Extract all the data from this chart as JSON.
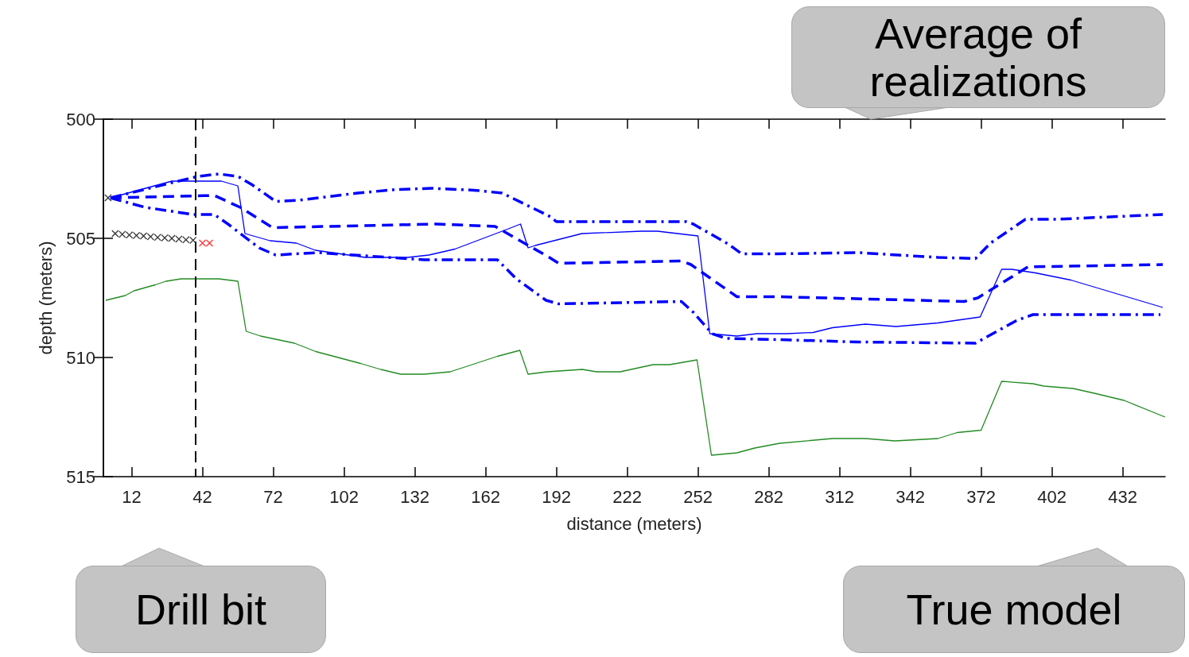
{
  "chart_data": {
    "type": "line",
    "xlabel": "distance (meters)",
    "ylabel": "depth (meters)",
    "annotations": [
      "Average of realizations",
      "Drill bit",
      "True model"
    ],
    "xlim": [
      0,
      450
    ],
    "ylim": [
      515,
      500
    ],
    "xticks": [
      12,
      42,
      72,
      102,
      132,
      162,
      192,
      222,
      252,
      282,
      312,
      342,
      372,
      402,
      432
    ],
    "yticks": [
      500,
      505,
      510,
      515
    ],
    "ref_lines": [
      {
        "axis": "x",
        "value": 39,
        "color": "#000000",
        "line_style": "dashed"
      }
    ],
    "series": [
      {
        "color": "#228b22",
        "line_style": "solid",
        "marker": "none",
        "x": [
          1,
          9.3,
          13,
          22,
          26.5,
          33,
          39,
          49,
          57,
          60.5,
          66.6,
          81,
          90,
          109,
          117.5,
          126,
          136,
          147,
          167,
          176.5,
          180,
          188,
          203,
          209,
          219,
          233,
          240,
          251.6,
          257.7,
          268.5,
          276,
          286.6,
          309,
          323,
          335.5,
          353.7,
          361.8,
          372,
          380.7,
          394,
          398.6,
          411,
          420,
          432.6,
          450
        ],
        "values": [
          507.6,
          507.4,
          507.2,
          506.95,
          506.8,
          506.7,
          506.7,
          506.7,
          506.8,
          508.9,
          509.1,
          509.4,
          509.75,
          510.25,
          510.5,
          510.7,
          510.7,
          510.6,
          509.95,
          509.7,
          510.7,
          510.6,
          510.5,
          510.6,
          510.6,
          510.3,
          510.3,
          510.1,
          514.1,
          514.0,
          513.8,
          513.6,
          513.4,
          513.4,
          513.5,
          513.4,
          513.15,
          513.05,
          511.0,
          511.1,
          511.2,
          511.3,
          511.5,
          511.8,
          512.5
        ]
      },
      {
        "color": "#0000ff",
        "line_style": "solid",
        "marker": "none",
        "x": [
          3,
          29,
          39,
          50,
          57,
          60,
          70.6,
          81.8,
          89.8,
          111,
          129,
          138,
          149,
          171.7,
          176.8,
          180,
          183,
          202.8,
          228,
          234.8,
          252,
          257,
          268.5,
          277,
          289.7,
          300.8,
          309,
          323,
          335.9,
          353.7,
          371.6,
          380.7,
          385,
          395,
          410,
          449
        ],
        "values": [
          503.3,
          502.6,
          502.6,
          502.6,
          502.8,
          504.8,
          505.1,
          505.2,
          505.5,
          505.8,
          505.8,
          505.7,
          505.45,
          504.6,
          504.4,
          505.4,
          505.3,
          504.8,
          504.7,
          504.7,
          504.9,
          509.0,
          509.1,
          509.0,
          509.0,
          508.95,
          508.75,
          508.6,
          508.7,
          508.55,
          508.3,
          506.3,
          506.3,
          506.45,
          506.75,
          507.9
        ]
      },
      {
        "color": "#0000ff",
        "line_style": "dashed",
        "marker": "none",
        "x": [
          3,
          47,
          58,
          71.7,
          141,
          166,
          189,
          193,
          245,
          249,
          268.5,
          286,
          364.8,
          370.6,
          391.8,
          449
        ],
        "values": [
          503.3,
          503.2,
          503.7,
          504.55,
          504.4,
          504.5,
          505.8,
          506.05,
          505.95,
          506.1,
          507.45,
          507.45,
          507.65,
          507.5,
          506.2,
          506.1
        ]
      },
      {
        "color": "#0000ff",
        "line_style": "dashdot",
        "marker": "none",
        "x": [
          3,
          40,
          49,
          57,
          63,
          73,
          83,
          107.7,
          124.5,
          139,
          157,
          169,
          189.6,
          192,
          247,
          250,
          265,
          270.5,
          286,
          320,
          353.7,
          369.6,
          376,
          390.8,
          404,
          449
        ],
        "values": [
          503.3,
          502.4,
          502.3,
          502.4,
          502.75,
          503.45,
          503.4,
          503.1,
          502.95,
          502.9,
          502.98,
          503.1,
          504.1,
          504.3,
          504.3,
          504.4,
          505.25,
          505.65,
          505.65,
          505.6,
          505.8,
          505.85,
          505.2,
          504.2,
          504.2,
          504.0
        ]
      },
      {
        "color": "#0000ff",
        "line_style": "dashdot",
        "marker": "none",
        "x": [
          3,
          17.7,
          38,
          47,
          52.8,
          66,
          73,
          91,
          136,
          167,
          175,
          187.6,
          193,
          245,
          250,
          258,
          263.8,
          286,
          320,
          369.6,
          376,
          387,
          394,
          448
        ],
        "values": [
          503.3,
          503.7,
          504.0,
          504.0,
          504.4,
          505.4,
          505.7,
          505.6,
          505.9,
          505.9,
          506.7,
          507.6,
          507.75,
          507.65,
          508.1,
          509.0,
          509.2,
          509.25,
          509.35,
          509.4,
          509.05,
          508.45,
          508.2,
          508.2
        ]
      },
      {
        "type": "scatter",
        "color": "#000000",
        "marker": "cross",
        "x": [
          2,
          5,
          8,
          11,
          14,
          17,
          20,
          23,
          26,
          29,
          32,
          35,
          38
        ],
        "values": [
          503.3,
          504.8,
          504.83,
          504.86,
          504.88,
          504.9,
          504.93,
          504.96,
          504.98,
          505.0,
          505.03,
          505.06,
          505.08
        ]
      },
      {
        "type": "scatter",
        "color": "#ff0000",
        "marker": "cross",
        "x": [
          42,
          45
        ],
        "values": [
          505.2,
          505.2
        ]
      }
    ]
  }
}
